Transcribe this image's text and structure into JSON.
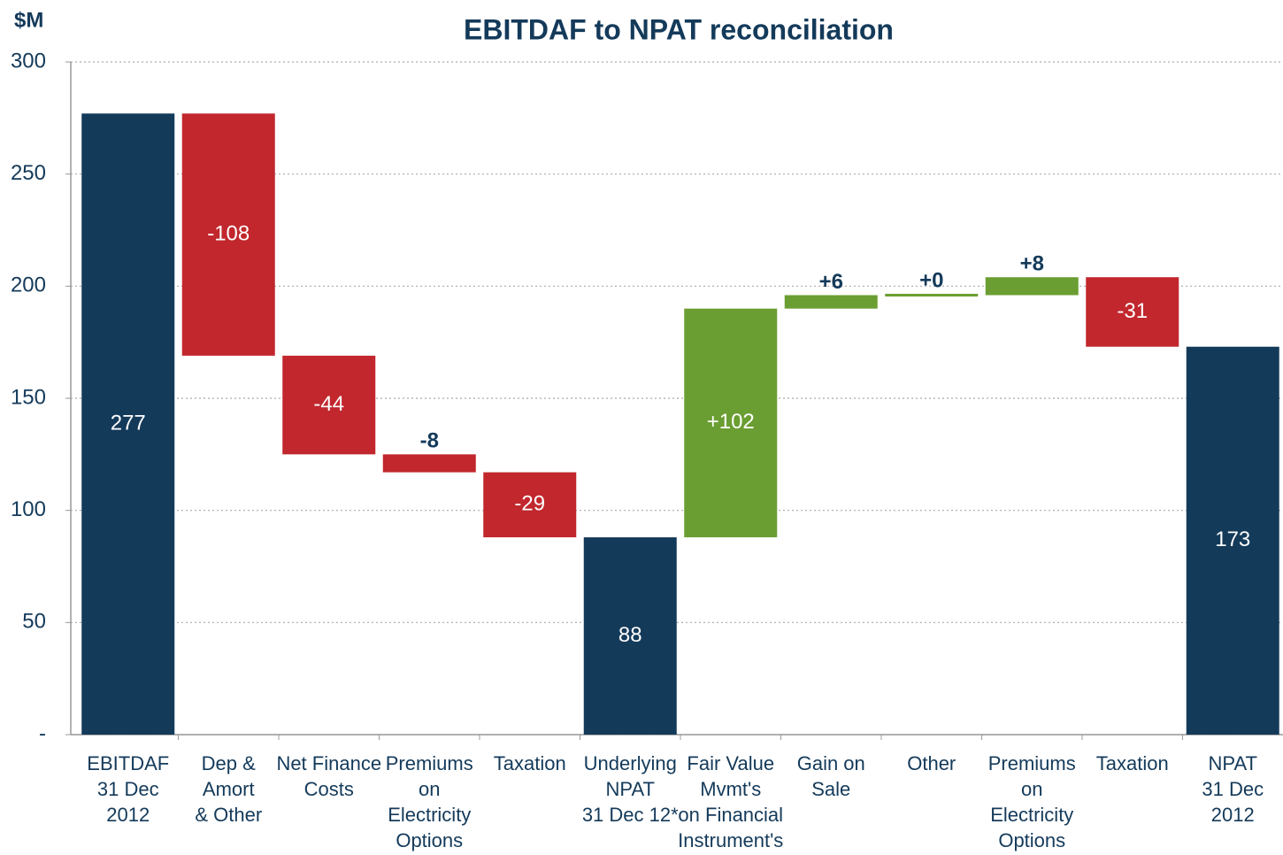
{
  "chart_data": {
    "type": "waterfall",
    "title": "EBITDAF to NPAT reconciliation",
    "y_label": "$M",
    "categories": [
      [
        "EBITDAF",
        "31 Dec",
        "2012"
      ],
      [
        "Dep &",
        "Amort",
        "& Other"
      ],
      [
        "Net Finance",
        "Costs"
      ],
      [
        "Premiums",
        "on",
        "Electricity",
        "Options"
      ],
      [
        "Taxation"
      ],
      [
        "Underlying",
        "NPAT",
        "31 Dec 12*"
      ],
      [
        "Fair Value",
        "Mvmt's",
        "on Financial",
        "Instrument's"
      ],
      [
        "Gain on",
        "Sale"
      ],
      [
        "Other"
      ],
      [
        "Premiums",
        "on",
        "Electricity",
        "Options"
      ],
      [
        "Taxation"
      ],
      [
        "NPAT",
        "31 Dec",
        "2012"
      ]
    ],
    "measure": [
      "total",
      "relative",
      "relative",
      "relative",
      "relative",
      "total",
      "relative",
      "relative",
      "relative",
      "relative",
      "relative",
      "total"
    ],
    "values": [
      277,
      -108,
      -44,
      -8,
      -29,
      88,
      102,
      6,
      0,
      8,
      -31,
      173
    ],
    "value_labels": [
      "277",
      "-108",
      "-44",
      "-8",
      "-29",
      "88",
      "+102",
      "+6",
      "+0",
      "+8",
      "-31",
      "173"
    ],
    "total_color": "#143a5a",
    "increase_color": "#6b9e32",
    "decrease_color": "#c1272d",
    "ylim": [
      0,
      300
    ],
    "yticks": [
      {
        "value": 0,
        "label": "-"
      },
      50,
      100,
      150,
      200,
      250,
      300
    ],
    "grid": true
  }
}
